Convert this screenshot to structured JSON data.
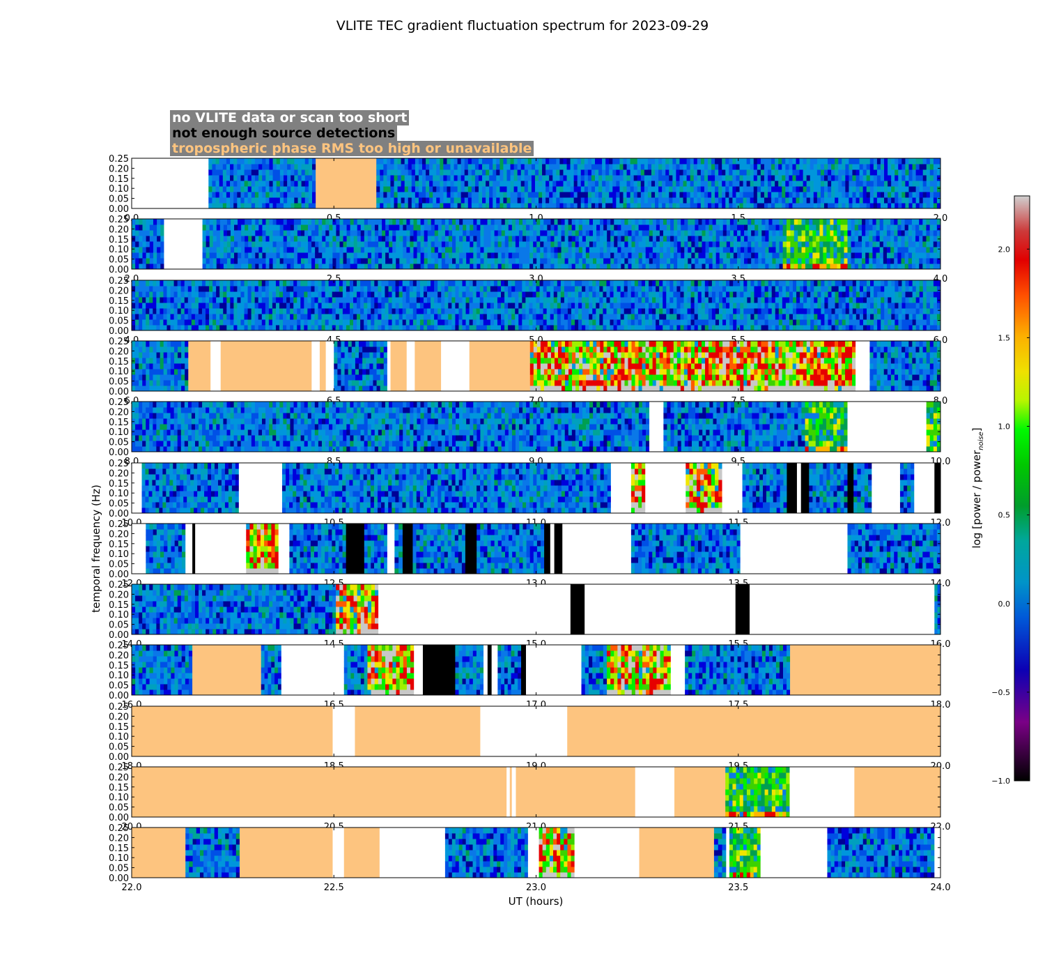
{
  "chart_data": {
    "type": "heatmap",
    "title": "VLITE TEC gradient fluctuation spectrum for 2023-09-29",
    "xlabel": "UT (hours)",
    "ylabel": "temporal frequency (Hz)",
    "colorbar_label": "log [power / power_noise]",
    "colorbar_range": [
      -1.0,
      2.3
    ],
    "colorbar_ticks": [
      "−1.0",
      "−0.5",
      "0.0",
      "0.5",
      "1.0",
      "1.5",
      "2.0"
    ],
    "colorbar_tick_values": [
      -1.0,
      -0.5,
      0.0,
      0.5,
      1.0,
      1.5,
      2.0
    ],
    "y_ticks": [
      "0.00",
      "0.05",
      "0.10",
      "0.15",
      "0.20",
      "0.25"
    ],
    "ylim": [
      0,
      0.25
    ],
    "legend": [
      {
        "label": "no VLITE data or scan too short",
        "text_color": "#ffffff",
        "status": "nodata"
      },
      {
        "label": "not enough source detections",
        "text_color": "#000000",
        "status": "nodet"
      },
      {
        "label": "tropospheric phase RMS too high or unavailable",
        "text_color": "#fdc47f",
        "status": "tropo"
      }
    ],
    "status_colors": {
      "nodata": "#ffffff",
      "nodet": "#000000",
      "tropo": "#fdc47f"
    },
    "rows": [
      {
        "xlim": [
          0,
          2
        ],
        "x_ticks": [
          "0.0",
          "0.5",
          "1.0",
          "1.5",
          "2.0"
        ],
        "segments": [
          {
            "start": 0.0,
            "end": 0.19,
            "kind": "nodata"
          },
          {
            "start": 0.19,
            "end": 0.455,
            "kind": "quiet"
          },
          {
            "start": 0.455,
            "end": 0.605,
            "kind": "tropo"
          },
          {
            "start": 0.605,
            "end": 2.0,
            "kind": "quiet"
          }
        ]
      },
      {
        "xlim": [
          2,
          4
        ],
        "x_ticks": [
          "2.0",
          "2.5",
          "3.0",
          "3.5",
          "4.0"
        ],
        "segments": [
          {
            "start": 2.0,
            "end": 2.08,
            "kind": "quiet"
          },
          {
            "start": 2.08,
            "end": 2.175,
            "kind": "nodata"
          },
          {
            "start": 2.175,
            "end": 3.61,
            "kind": "quiet"
          },
          {
            "start": 3.61,
            "end": 3.675,
            "kind": "moderate"
          },
          {
            "start": 3.675,
            "end": 3.77,
            "kind": "moderate"
          },
          {
            "start": 3.77,
            "end": 4.0,
            "kind": "quiet"
          }
        ]
      },
      {
        "xlim": [
          4,
          6
        ],
        "x_ticks": [
          "4.0",
          "4.5",
          "5.0",
          "5.5",
          "6.0"
        ],
        "segments": [
          {
            "start": 4.0,
            "end": 6.0,
            "kind": "quiet"
          }
        ]
      },
      {
        "xlim": [
          6,
          8
        ],
        "x_ticks": [
          "6.0",
          "6.5",
          "7.0",
          "7.5",
          "8.0"
        ],
        "segments": [
          {
            "start": 6.0,
            "end": 6.14,
            "kind": "quiet"
          },
          {
            "start": 6.14,
            "end": 6.195,
            "kind": "tropo"
          },
          {
            "start": 6.195,
            "end": 6.22,
            "kind": "nodata"
          },
          {
            "start": 6.22,
            "end": 6.445,
            "kind": "tropo"
          },
          {
            "start": 6.445,
            "end": 6.465,
            "kind": "nodata"
          },
          {
            "start": 6.465,
            "end": 6.48,
            "kind": "tropo"
          },
          {
            "start": 6.48,
            "end": 6.5,
            "kind": "nodata"
          },
          {
            "start": 6.5,
            "end": 6.632,
            "kind": "quiet"
          },
          {
            "start": 6.632,
            "end": 6.64,
            "kind": "nodata"
          },
          {
            "start": 6.64,
            "end": 6.68,
            "kind": "tropo"
          },
          {
            "start": 6.68,
            "end": 6.7,
            "kind": "nodata"
          },
          {
            "start": 6.7,
            "end": 6.765,
            "kind": "tropo"
          },
          {
            "start": 6.765,
            "end": 6.835,
            "kind": "nodata"
          },
          {
            "start": 6.835,
            "end": 6.985,
            "kind": "tropo"
          },
          {
            "start": 6.985,
            "end": 7.79,
            "kind": "strong"
          },
          {
            "start": 7.79,
            "end": 7.825,
            "kind": "nodata"
          },
          {
            "start": 7.825,
            "end": 8.0,
            "kind": "quiet"
          }
        ]
      },
      {
        "xlim": [
          8,
          10
        ],
        "x_ticks": [
          "8.0",
          "8.5",
          "9.0",
          "9.5",
          "10.0"
        ],
        "segments": [
          {
            "start": 8.0,
            "end": 9.28,
            "kind": "quiet"
          },
          {
            "start": 9.28,
            "end": 9.315,
            "kind": "nodata"
          },
          {
            "start": 9.315,
            "end": 9.665,
            "kind": "quiet"
          },
          {
            "start": 9.665,
            "end": 9.77,
            "kind": "moderate"
          },
          {
            "start": 9.77,
            "end": 9.965,
            "kind": "nodata"
          },
          {
            "start": 9.965,
            "end": 10.0,
            "kind": "moderate"
          }
        ]
      },
      {
        "xlim": [
          10,
          12
        ],
        "x_ticks": [
          "10.0",
          "10.5",
          "11.0",
          "11.5",
          "12.0"
        ],
        "segments": [
          {
            "start": 10.0,
            "end": 10.025,
            "kind": "nodata"
          },
          {
            "start": 10.025,
            "end": 10.265,
            "kind": "quiet"
          },
          {
            "start": 10.265,
            "end": 10.372,
            "kind": "nodata"
          },
          {
            "start": 10.372,
            "end": 11.185,
            "kind": "quiet"
          },
          {
            "start": 11.185,
            "end": 11.235,
            "kind": "nodata"
          },
          {
            "start": 11.235,
            "end": 11.27,
            "kind": "strong"
          },
          {
            "start": 11.27,
            "end": 11.37,
            "kind": "nodata"
          },
          {
            "start": 11.37,
            "end": 11.46,
            "kind": "strong"
          },
          {
            "start": 11.46,
            "end": 11.51,
            "kind": "nodata"
          },
          {
            "start": 11.51,
            "end": 11.62,
            "kind": "quiet"
          },
          {
            "start": 11.62,
            "end": 11.645,
            "kind": "nodet"
          },
          {
            "start": 11.645,
            "end": 11.655,
            "kind": "nodata"
          },
          {
            "start": 11.655,
            "end": 11.675,
            "kind": "nodet"
          },
          {
            "start": 11.675,
            "end": 11.77,
            "kind": "quiet"
          },
          {
            "start": 11.77,
            "end": 11.785,
            "kind": "nodet"
          },
          {
            "start": 11.785,
            "end": 11.83,
            "kind": "quiet"
          },
          {
            "start": 11.83,
            "end": 11.9,
            "kind": "nodata"
          },
          {
            "start": 11.9,
            "end": 11.935,
            "kind": "quiet"
          },
          {
            "start": 11.935,
            "end": 11.985,
            "kind": "nodata"
          },
          {
            "start": 11.985,
            "end": 12.0,
            "kind": "nodet"
          }
        ]
      },
      {
        "xlim": [
          12,
          14
        ],
        "x_ticks": [
          "12.0",
          "12.5",
          "13.0",
          "13.5",
          "14.0"
        ],
        "segments": [
          {
            "start": 12.0,
            "end": 12.035,
            "kind": "nodata"
          },
          {
            "start": 12.035,
            "end": 12.133,
            "kind": "quiet"
          },
          {
            "start": 12.133,
            "end": 12.15,
            "kind": "nodata"
          },
          {
            "start": 12.15,
            "end": 12.157,
            "kind": "nodet"
          },
          {
            "start": 12.157,
            "end": 12.283,
            "kind": "nodata"
          },
          {
            "start": 12.283,
            "end": 12.363,
            "kind": "strong"
          },
          {
            "start": 12.363,
            "end": 12.39,
            "kind": "nodata"
          },
          {
            "start": 12.39,
            "end": 12.53,
            "kind": "quiet"
          },
          {
            "start": 12.53,
            "end": 12.575,
            "kind": "nodet"
          },
          {
            "start": 12.575,
            "end": 12.632,
            "kind": "quiet"
          },
          {
            "start": 12.632,
            "end": 12.65,
            "kind": "nodata"
          },
          {
            "start": 12.65,
            "end": 12.67,
            "kind": "quiet"
          },
          {
            "start": 12.67,
            "end": 12.695,
            "kind": "nodet"
          },
          {
            "start": 12.695,
            "end": 12.825,
            "kind": "quiet"
          },
          {
            "start": 12.825,
            "end": 12.853,
            "kind": "nodet"
          },
          {
            "start": 12.853,
            "end": 13.02,
            "kind": "quiet"
          },
          {
            "start": 13.02,
            "end": 13.035,
            "kind": "nodet"
          },
          {
            "start": 13.035,
            "end": 13.045,
            "kind": "nodata"
          },
          {
            "start": 13.045,
            "end": 13.065,
            "kind": "nodet"
          },
          {
            "start": 13.065,
            "end": 13.235,
            "kind": "nodata"
          },
          {
            "start": 13.235,
            "end": 13.505,
            "kind": "quiet"
          },
          {
            "start": 13.505,
            "end": 13.77,
            "kind": "nodata"
          },
          {
            "start": 13.77,
            "end": 14.0,
            "kind": "quiet"
          }
        ]
      },
      {
        "xlim": [
          14,
          16
        ],
        "x_ticks": [
          "14.0",
          "14.5",
          "15.0",
          "15.5",
          "16.0"
        ],
        "segments": [
          {
            "start": 14.0,
            "end": 14.505,
            "kind": "quiet"
          },
          {
            "start": 14.505,
            "end": 14.61,
            "kind": "strong"
          },
          {
            "start": 14.61,
            "end": 15.085,
            "kind": "nodata"
          },
          {
            "start": 15.085,
            "end": 15.12,
            "kind": "nodet"
          },
          {
            "start": 15.12,
            "end": 15.493,
            "kind": "nodata"
          },
          {
            "start": 15.493,
            "end": 15.528,
            "kind": "nodet"
          },
          {
            "start": 15.528,
            "end": 15.985,
            "kind": "nodata"
          },
          {
            "start": 15.985,
            "end": 16.0,
            "kind": "quiet"
          }
        ]
      },
      {
        "xlim": [
          16,
          18
        ],
        "x_ticks": [
          "16.0",
          "16.5",
          "17.0",
          "17.5",
          "18.0"
        ],
        "segments": [
          {
            "start": 16.0,
            "end": 16.15,
            "kind": "quiet"
          },
          {
            "start": 16.15,
            "end": 16.32,
            "kind": "tropo"
          },
          {
            "start": 16.32,
            "end": 16.37,
            "kind": "quiet"
          },
          {
            "start": 16.37,
            "end": 16.525,
            "kind": "nodata"
          },
          {
            "start": 16.525,
            "end": 16.583,
            "kind": "quiet"
          },
          {
            "start": 16.583,
            "end": 16.698,
            "kind": "strong"
          },
          {
            "start": 16.698,
            "end": 16.72,
            "kind": "nodata"
          },
          {
            "start": 16.72,
            "end": 16.8,
            "kind": "nodet"
          },
          {
            "start": 16.8,
            "end": 16.87,
            "kind": "quiet"
          },
          {
            "start": 16.87,
            "end": 16.88,
            "kind": "nodata"
          },
          {
            "start": 16.88,
            "end": 16.89,
            "kind": "nodet"
          },
          {
            "start": 16.89,
            "end": 16.905,
            "kind": "nodata"
          },
          {
            "start": 16.905,
            "end": 16.963,
            "kind": "quiet"
          },
          {
            "start": 16.963,
            "end": 16.975,
            "kind": "nodet"
          },
          {
            "start": 16.975,
            "end": 17.112,
            "kind": "nodata"
          },
          {
            "start": 17.112,
            "end": 17.175,
            "kind": "quiet"
          },
          {
            "start": 17.175,
            "end": 17.333,
            "kind": "strong"
          },
          {
            "start": 17.333,
            "end": 17.368,
            "kind": "nodata"
          },
          {
            "start": 17.368,
            "end": 17.628,
            "kind": "quiet"
          },
          {
            "start": 17.628,
            "end": 18.0,
            "kind": "tropo"
          }
        ]
      },
      {
        "xlim": [
          18,
          20
        ],
        "x_ticks": [
          "18.0",
          "18.5",
          "19.0",
          "19.5",
          "20.0"
        ],
        "segments": [
          {
            "start": 18.0,
            "end": 18.497,
            "kind": "tropo"
          },
          {
            "start": 18.497,
            "end": 18.552,
            "kind": "nodata"
          },
          {
            "start": 18.552,
            "end": 18.862,
            "kind": "tropo"
          },
          {
            "start": 18.862,
            "end": 19.077,
            "kind": "nodata"
          },
          {
            "start": 19.077,
            "end": 20.0,
            "kind": "tropo"
          }
        ]
      },
      {
        "xlim": [
          20,
          22
        ],
        "x_ticks": [
          "20.0",
          "20.5",
          "21.0",
          "21.5",
          "22.0"
        ],
        "segments": [
          {
            "start": 20.0,
            "end": 20.927,
            "kind": "tropo"
          },
          {
            "start": 20.927,
            "end": 20.935,
            "kind": "nodata"
          },
          {
            "start": 20.935,
            "end": 20.94,
            "kind": "tropo"
          },
          {
            "start": 20.94,
            "end": 20.95,
            "kind": "nodata"
          },
          {
            "start": 20.95,
            "end": 21.245,
            "kind": "tropo"
          },
          {
            "start": 21.245,
            "end": 21.342,
            "kind": "nodata"
          },
          {
            "start": 21.342,
            "end": 21.468,
            "kind": "tropo"
          },
          {
            "start": 21.468,
            "end": 21.627,
            "kind": "moderate"
          },
          {
            "start": 21.627,
            "end": 21.787,
            "kind": "nodata"
          },
          {
            "start": 21.787,
            "end": 22.0,
            "kind": "tropo"
          }
        ]
      },
      {
        "xlim": [
          22,
          24
        ],
        "x_ticks": [
          "22.0",
          "22.5",
          "23.0",
          "23.5",
          "24.0"
        ],
        "segments": [
          {
            "start": 22.0,
            "end": 22.133,
            "kind": "tropo"
          },
          {
            "start": 22.133,
            "end": 22.267,
            "kind": "quiet"
          },
          {
            "start": 22.267,
            "end": 22.497,
            "kind": "tropo"
          },
          {
            "start": 22.497,
            "end": 22.525,
            "kind": "nodata"
          },
          {
            "start": 22.525,
            "end": 22.613,
            "kind": "tropo"
          },
          {
            "start": 22.613,
            "end": 22.775,
            "kind": "nodata"
          },
          {
            "start": 22.775,
            "end": 22.98,
            "kind": "quiet"
          },
          {
            "start": 22.98,
            "end": 23.007,
            "kind": "nodata"
          },
          {
            "start": 23.007,
            "end": 23.095,
            "kind": "strong"
          },
          {
            "start": 23.095,
            "end": 23.255,
            "kind": "nodata"
          },
          {
            "start": 23.255,
            "end": 23.44,
            "kind": "tropo"
          },
          {
            "start": 23.44,
            "end": 23.47,
            "kind": "quiet"
          },
          {
            "start": 23.47,
            "end": 23.478,
            "kind": "nodata"
          },
          {
            "start": 23.478,
            "end": 23.555,
            "kind": "moderate"
          },
          {
            "start": 23.555,
            "end": 23.72,
            "kind": "nodata"
          },
          {
            "start": 23.72,
            "end": 23.985,
            "kind": "quiet"
          },
          {
            "start": 23.985,
            "end": 24.0,
            "kind": "nodata"
          }
        ]
      }
    ]
  }
}
